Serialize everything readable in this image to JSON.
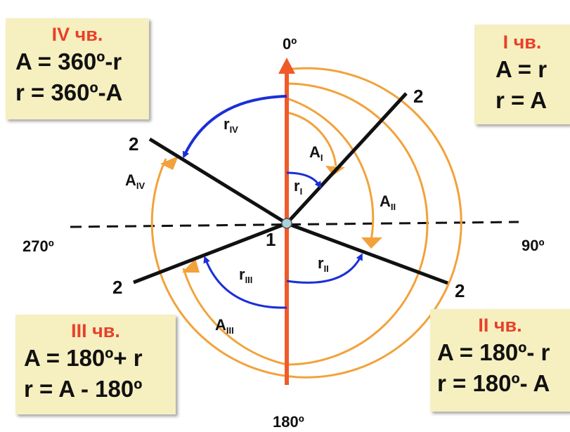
{
  "angles": {
    "top": "0º",
    "right": "90º",
    "bottom": "180º",
    "left": "270º"
  },
  "center_label": "1",
  "ray_label": "2",
  "labels": {
    "A_I": "I",
    "A_II": "II",
    "A_III": "III",
    "A_IV": "IV",
    "r_I": "I",
    "r_II": "II",
    "r_III": "III",
    "r_IV": "IV",
    "A": "A",
    "r": "r"
  },
  "quarters": {
    "IV": {
      "title": "IV чв.",
      "line1": "A = 360º-r",
      "line2": "r = 360º-A"
    },
    "I": {
      "title": "I чв.",
      "line1": "A = r",
      "line2": "r = A"
    },
    "III": {
      "title": "III чв.",
      "line1": "A = 180º+ r",
      "line2": "r = A - 180º"
    },
    "II": {
      "title": "II чв.",
      "line1": "A = 180º- r",
      "line2": "r = 180º- A"
    }
  },
  "colors": {
    "axis": "#f05a28",
    "arc_orange": "#f2a23a",
    "arrow_blue": "#1a2fd8",
    "box_bg": "#f6efbf",
    "box_title": "#e8402a",
    "ray": "#111111",
    "center_dot": "#a9d3dc"
  }
}
